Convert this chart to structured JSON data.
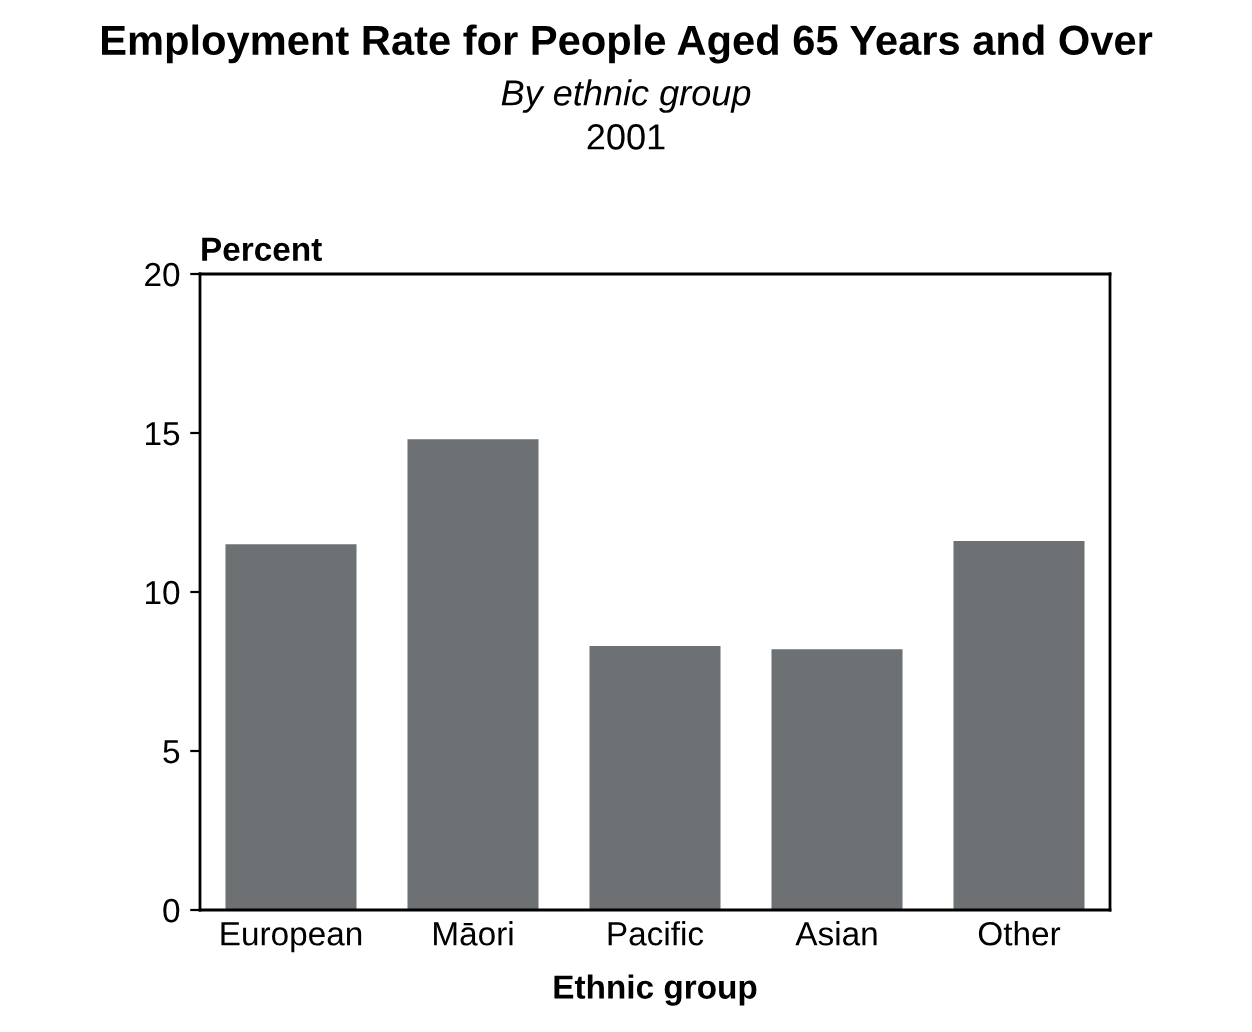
{
  "chart_data": {
    "type": "bar",
    "title": "Employment Rate for People Aged 65 Years and Over",
    "subtitle": "By ethnic group",
    "annotations": [
      "2001"
    ],
    "ylabel": "Percent",
    "xlabel": "Ethnic group",
    "categories": [
      "European",
      "Māori",
      "Pacific",
      "Asian",
      "Other"
    ],
    "values": [
      11.5,
      14.8,
      8.3,
      8.2,
      11.6
    ],
    "color": "#6d7173",
    "ylim": [
      0,
      20
    ],
    "yticks": [
      0,
      5,
      10,
      15,
      20
    ],
    "grid": false
  }
}
